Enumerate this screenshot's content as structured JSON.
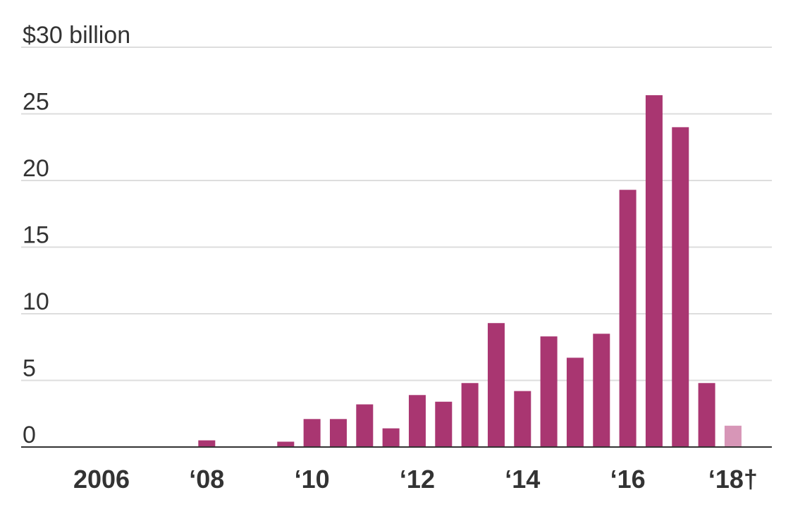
{
  "chart_data": {
    "type": "bar",
    "categories": [
      "2006",
      null,
      null,
      null,
      "‘08",
      null,
      null,
      null,
      "‘10",
      null,
      null,
      null,
      "‘12",
      null,
      null,
      null,
      "‘14",
      null,
      null,
      null,
      "‘16",
      null,
      null,
      null,
      "‘18†"
    ],
    "values": [
      0,
      0,
      0,
      0,
      0.5,
      0,
      0,
      0.4,
      2.1,
      2.1,
      3.2,
      1.4,
      3.9,
      3.4,
      4.8,
      9.3,
      4.2,
      8.3,
      6.7,
      8.5,
      19.3,
      26.4,
      24.0,
      4.8,
      1.6
    ],
    "colors": [
      "#a93671",
      "#a93671",
      "#a93671",
      "#a93671",
      "#a93671",
      "#a93671",
      "#a93671",
      "#a93671",
      "#a93671",
      "#a93671",
      "#a93671",
      "#a93671",
      "#a93671",
      "#a93671",
      "#a93671",
      "#a93671",
      "#a93671",
      "#a93671",
      "#a93671",
      "#a93671",
      "#a93671",
      "#a93671",
      "#a93671",
      "#a93671",
      "#d796b7"
    ],
    "ylim": [
      0,
      30
    ],
    "yticks": [
      0,
      5,
      10,
      15,
      20,
      25,
      {
        "value": 30,
        "label": "$30 billion"
      }
    ],
    "grid": true
  }
}
